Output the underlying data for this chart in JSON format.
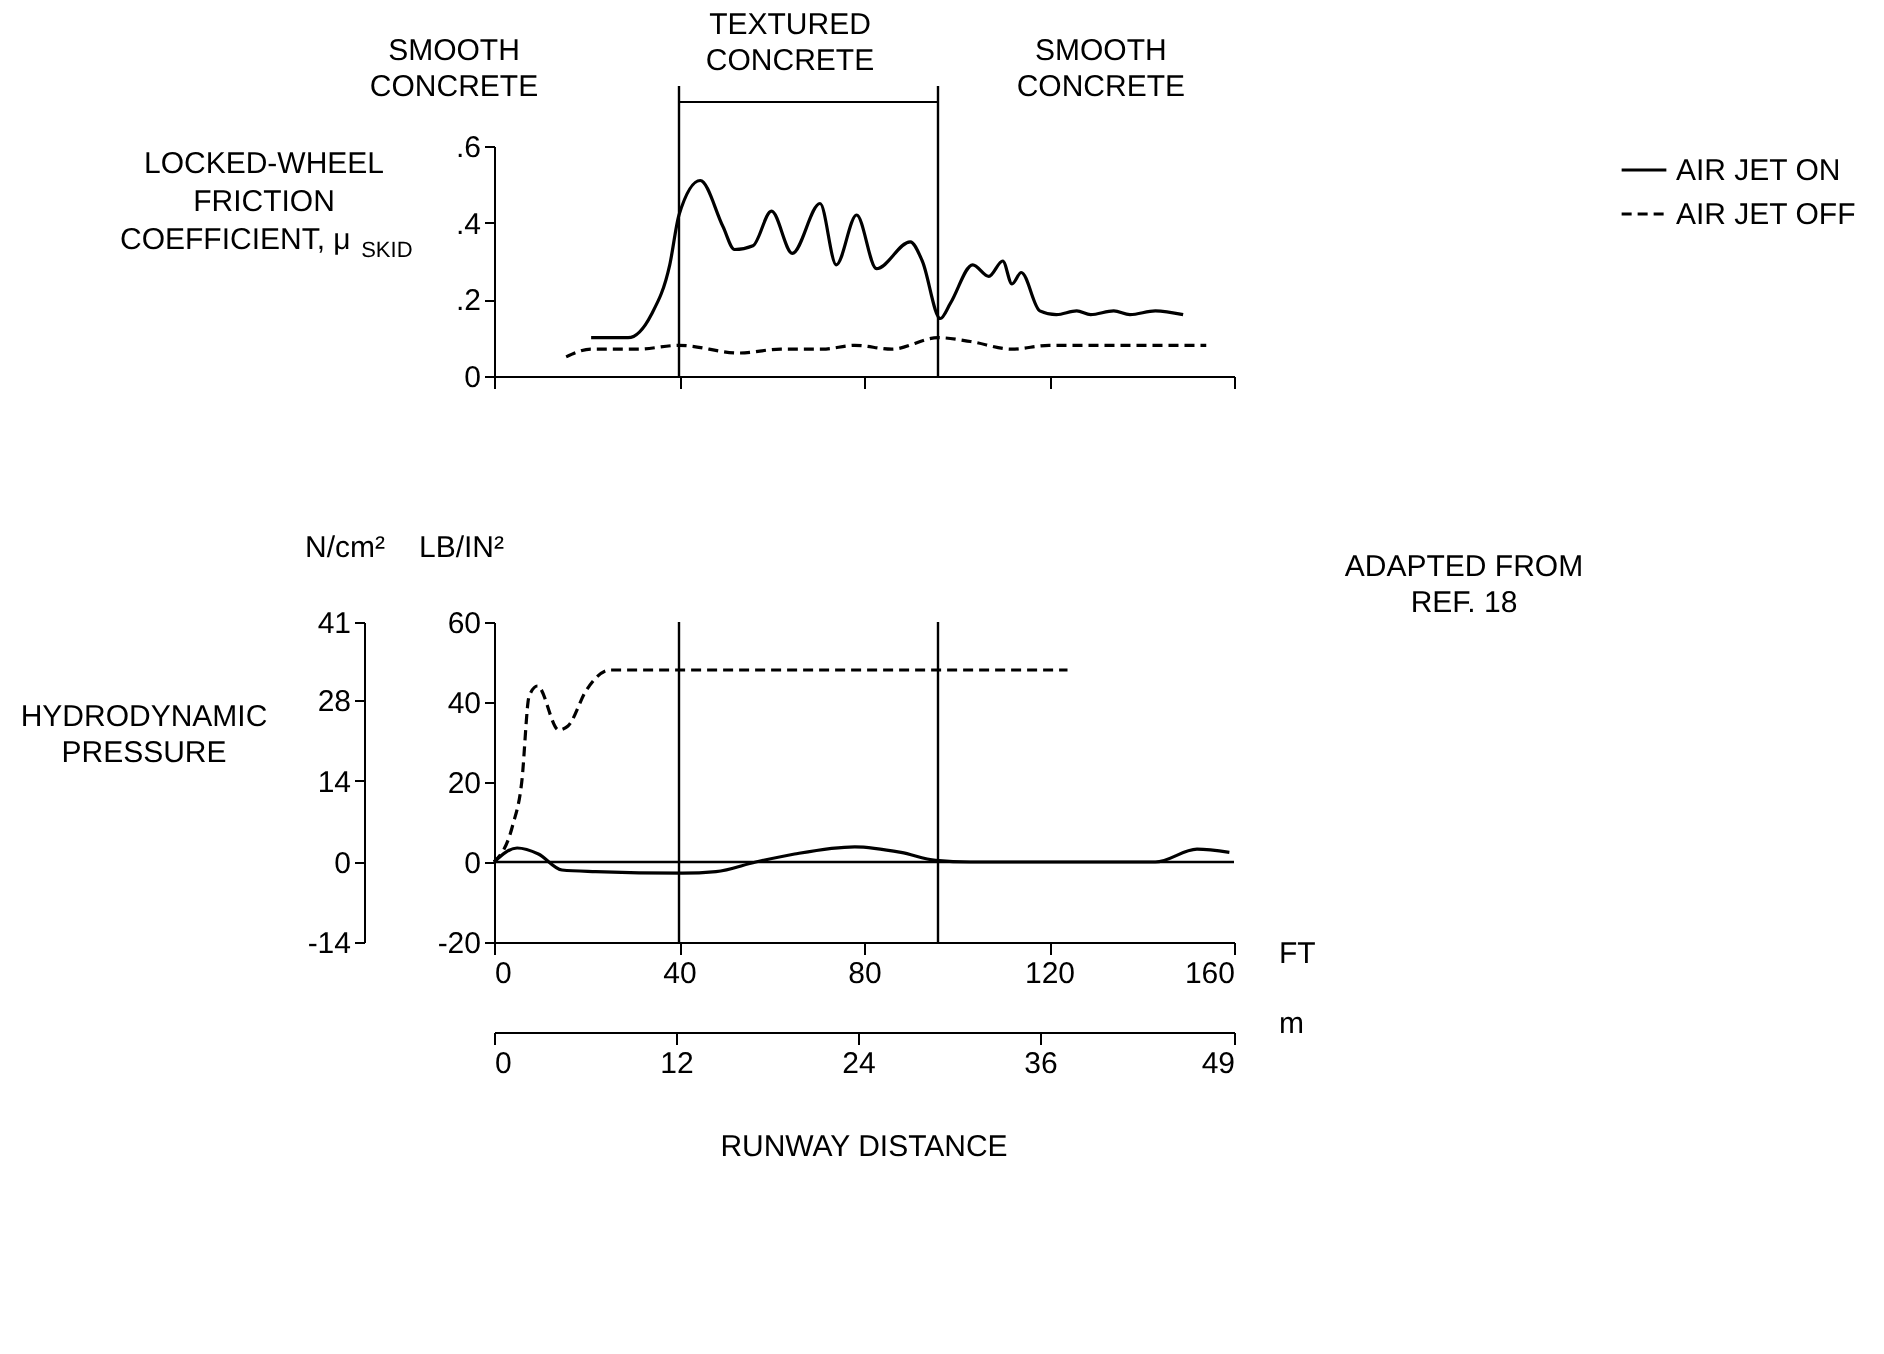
{
  "chart_data": [
    {
      "type": "line",
      "ylabel": "LOCKED-WHEEL FRICTION COEFFICIENT, μ$_{SKID}$",
      "xlim": [
        0,
        160
      ],
      "xticks": [
        0,
        40,
        80,
        120,
        160
      ],
      "ylim": [
        0,
        0.6
      ],
      "yticks": [
        {
          "value": 0,
          "label": "0"
        },
        {
          "value": 0.2,
          "label": ".2"
        },
        {
          "value": 0.4,
          "label": ".4"
        },
        {
          "value": 0.6,
          "label": ".6"
        }
      ],
      "tick_labels": "y",
      "legend": "right",
      "series": [
        {
          "name": "AIR JET ON",
          "color": "#000000",
          "line_style": "solid",
          "x": [
            21,
            29,
            34,
            38,
            40,
            44.6,
            49.5,
            52,
            56,
            60,
            64.5,
            70.5,
            74,
            78.4,
            82.7,
            90,
            92.6,
            96.5,
            98.7,
            103.5,
            107,
            110,
            112,
            114,
            118,
            121.6,
            126,
            129,
            134,
            137.5,
            143,
            149
          ],
          "values": [
            0.1,
            0.1,
            0.16,
            0.29,
            0.42,
            0.51,
            0.39,
            0.33,
            0.34,
            0.43,
            0.32,
            0.45,
            0.29,
            0.42,
            0.28,
            0.35,
            0.3,
            0.15,
            0.19,
            0.29,
            0.26,
            0.3,
            0.24,
            0.27,
            0.17,
            0.16,
            0.17,
            0.16,
            0.17,
            0.16,
            0.17,
            0.16
          ]
        },
        {
          "name": "AIR JET OFF",
          "color": "#000000",
          "line_style": "dashed",
          "x": [
            15.6,
            21,
            31,
            40,
            53,
            62,
            71,
            78,
            86,
            96,
            103,
            112,
            120,
            138,
            154
          ],
          "values": [
            0.05,
            0.07,
            0.07,
            0.08,
            0.06,
            0.07,
            0.07,
            0.08,
            0.07,
            0.1,
            0.09,
            0.07,
            0.08,
            0.08,
            0.08
          ]
        }
      ],
      "ref_lines": [
        {
          "axis": "x",
          "value": 40
        },
        {
          "axis": "x",
          "value": 96
        }
      ],
      "annotations": [
        "SMOOTH CONCRETE",
        "TEXTURED CONCRETE",
        "SMOOTH CONCRETE"
      ]
    },
    {
      "type": "line",
      "ylabel": "LB/IN²",
      "y2label": "N/cm²",
      "xlabel": "FT",
      "x2label": "m",
      "legend": "right",
      "xlim": [
        0,
        160
      ],
      "xticks": [
        0,
        40,
        80,
        120,
        160
      ],
      "x2lim": [
        0,
        48.8
      ],
      "x2ticks": [
        0,
        12,
        24,
        36,
        {
          "value": 48.8,
          "label": "49"
        }
      ],
      "ylim": [
        -20,
        60
      ],
      "yticks": [
        -20,
        0,
        20,
        40,
        60
      ],
      "y2lim": [
        -13.8,
        41.4
      ],
      "y2ticks": [
        {
          "value": -13.8,
          "label": "-14"
        },
        0,
        14,
        28,
        {
          "value": 41.4,
          "label": "41"
        }
      ],
      "series": [
        {
          "name": "AIR JET ON",
          "color": "#000000",
          "line_style": "solid",
          "x": [
            0,
            5,
            9.6,
            14.7,
            22,
            40.7,
            48,
            56.6,
            65,
            78,
            88,
            95.5,
            103,
            143,
            152,
            159
          ],
          "values": [
            0,
            3.5,
            2,
            -2,
            -2.4,
            -2.8,
            -2.4,
            0,
            2,
            3.8,
            2.4,
            0.4,
            0,
            0,
            3.2,
            2.4
          ]
        },
        {
          "name": "AIR JET OFF",
          "color": "#000000",
          "line_style": "dashed",
          "x": [
            0,
            4,
            6,
            7.6,
            9.4,
            14,
            16,
            20,
            25,
            124
          ],
          "values": [
            0,
            9,
            20,
            41.5,
            44,
            33,
            34,
            43,
            48,
            48
          ]
        }
      ],
      "ref_lines": [
        {
          "axis": "x",
          "value": 40
        },
        {
          "axis": "x",
          "value": 96
        },
        {
          "axis": "y",
          "value": 0
        }
      ],
      "annotations": [
        "HYDRODYNAMIC PRESSURE",
        "RUNWAY DISTANCE",
        "ADAPTED FROM REF. 18"
      ]
    }
  ]
}
